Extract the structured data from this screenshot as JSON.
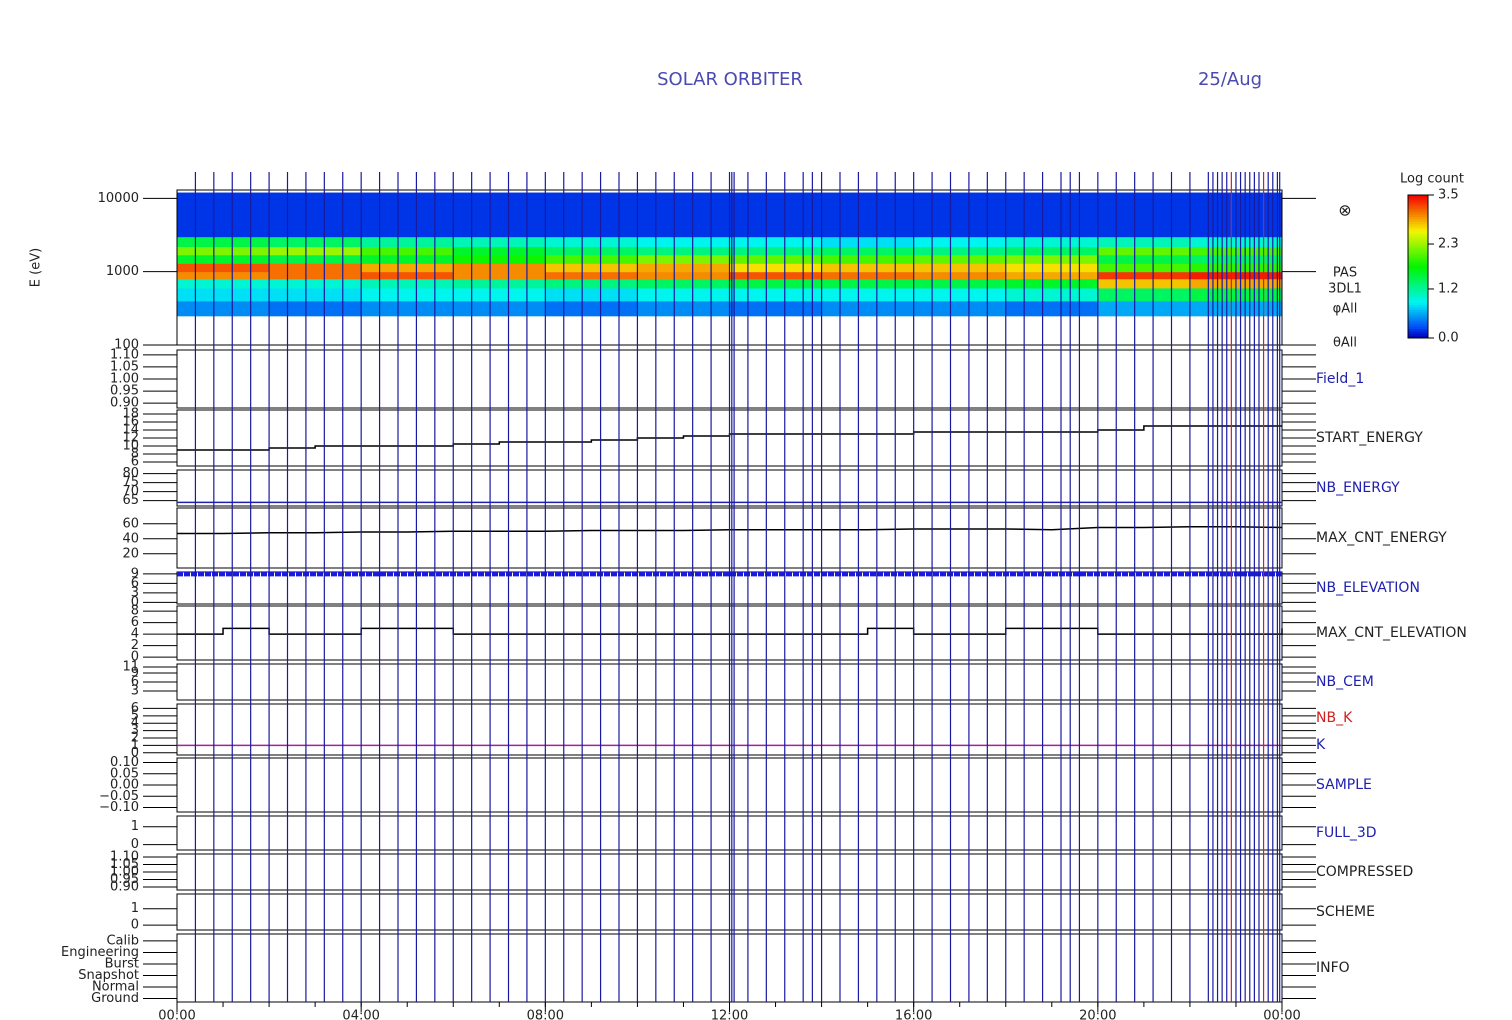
{
  "header": {
    "title": "SOLAR ORBITER",
    "date": "25/Aug"
  },
  "x_axis": {
    "xlim": [
      0,
      24
    ],
    "minor_step": 1,
    "xticks": [
      {
        "value": 0,
        "label": "00:00"
      },
      {
        "value": 4,
        "label": "04:00"
      },
      {
        "value": 8,
        "label": "08:00"
      },
      {
        "value": 12,
        "label": "12:00"
      },
      {
        "value": 16,
        "label": "16:00"
      },
      {
        "value": 20,
        "label": "20:00"
      },
      {
        "value": 24,
        "label": "00:00"
      }
    ]
  },
  "events": {
    "blue": [
      0.4,
      0.8,
      1.2,
      1.6,
      2.0,
      2.4,
      2.8,
      3.2,
      3.6,
      4.0,
      4.4,
      4.8,
      5.2,
      5.6,
      6.0,
      6.4,
      6.8,
      7.2,
      7.6,
      8.0,
      8.4,
      8.8,
      9.2,
      9.6,
      10.0,
      10.4,
      10.8,
      11.2,
      11.6,
      12.0,
      12.05,
      12.1,
      12.4,
      12.8,
      13.2,
      13.6,
      13.8,
      14.0,
      14.4,
      14.8,
      15.2,
      15.6,
      16.0,
      16.4,
      16.8,
      17.2,
      17.6,
      18.0,
      18.4,
      18.8,
      19.2,
      19.4,
      19.6,
      20.0,
      20.4,
      20.8,
      21.2,
      21.6,
      22.0,
      22.4,
      22.5,
      22.6,
      22.7,
      22.8,
      23.0,
      23.1,
      23.2,
      23.3,
      23.4,
      23.5,
      23.7,
      23.8,
      23.9,
      23.95
    ],
    "red": [
      22.9,
      23.6
    ]
  },
  "chart_data": [
    {
      "type": "heatmap",
      "ylabel": "E (eV)",
      "log_y": true,
      "ylim": [
        100,
        13000
      ],
      "yticks": [
        100,
        1000,
        10000
      ],
      "x_bins": [
        0,
        2,
        4,
        6,
        8,
        10,
        12,
        14,
        16,
        18,
        20,
        22,
        24
      ],
      "y_bins": [
        250,
        400,
        600,
        800,
        1000,
        1300,
        1700,
        2200,
        3000,
        12000
      ],
      "values": [
        [
          0.5,
          0.4,
          0.5,
          0.5,
          0.4,
          0.5,
          0.4,
          0.5,
          0.5,
          0.4,
          0.6,
          0.6
        ],
        [
          0.8,
          0.8,
          0.9,
          0.9,
          0.8,
          0.9,
          0.9,
          0.9,
          0.9,
          1.0,
          1.4,
          1.5
        ],
        [
          1.0,
          1.0,
          1.1,
          1.2,
          1.3,
          1.4,
          1.5,
          1.5,
          1.5,
          1.6,
          2.8,
          2.9
        ],
        [
          3.0,
          3.1,
          3.2,
          3.0,
          3.1,
          3.0,
          3.2,
          3.1,
          3.0,
          2.9,
          3.3,
          3.4
        ],
        [
          3.2,
          3.1,
          2.9,
          3.0,
          2.8,
          2.9,
          2.7,
          2.8,
          2.8,
          2.7,
          2.0,
          1.9
        ],
        [
          1.6,
          1.5,
          1.6,
          1.8,
          2.0,
          2.2,
          2.1,
          2.0,
          2.1,
          2.2,
          1.5,
          1.4
        ],
        [
          2.2,
          2.3,
          2.0,
          1.6,
          1.4,
          1.3,
          1.3,
          1.4,
          1.3,
          1.4,
          2.1,
          2.0
        ],
        [
          1.5,
          1.4,
          1.2,
          1.1,
          1.0,
          0.9,
          0.9,
          0.8,
          0.9,
          1.0,
          1.1,
          1.0
        ],
        [
          0.2,
          0.2,
          0.2,
          0.2,
          0.2,
          0.2,
          0.2,
          0.2,
          0.2,
          0.2,
          0.2,
          0.2
        ]
      ],
      "colorbar": {
        "title": "Log count",
        "clim": [
          0,
          3.5
        ],
        "ticks": [
          {
            "value": 0,
            "label": "0.0"
          },
          {
            "value": 1.2,
            "label": "1.2"
          },
          {
            "value": 2.3,
            "label": "2.3"
          },
          {
            "value": 3.5,
            "label": "3.5"
          }
        ]
      },
      "labels": [
        {
          "text": "PAS",
          "color": "#222222"
        },
        {
          "text": "3DL1",
          "color": "#222222"
        },
        {
          "text": "φAll",
          "color": "#222222"
        },
        {
          "text": "θAll",
          "color": "#222222"
        }
      ]
    },
    {
      "type": "blank",
      "ylim": [
        0.88,
        1.12
      ],
      "yticks": [
        {
          "value": 0.9,
          "label": "0.90"
        },
        {
          "value": 0.95,
          "label": "0.95"
        },
        {
          "value": 1,
          "label": "1.00"
        },
        {
          "value": 1.05,
          "label": "1.05"
        },
        {
          "value": 1.1,
          "label": "1.10"
        }
      ],
      "labels": [
        {
          "text": "Field_1",
          "color": "#2020b0"
        }
      ]
    },
    {
      "type": "line",
      "step": true,
      "color": "#000000",
      "ylim": [
        5,
        19
      ],
      "yticks": [
        6,
        8,
        10,
        12,
        14,
        16,
        18
      ],
      "x": [
        0,
        1,
        2,
        3,
        4,
        5,
        6,
        7,
        8,
        9,
        10,
        11,
        12,
        13,
        14,
        15,
        16,
        17,
        18,
        19,
        20,
        21,
        22,
        23,
        24
      ],
      "values": [
        9,
        9,
        9.5,
        10,
        10,
        10,
        10.5,
        11,
        11,
        11.5,
        12,
        12.5,
        13,
        13,
        13,
        13,
        13.5,
        13.5,
        13.5,
        13.5,
        14,
        15,
        15,
        15,
        15
      ],
      "labels": [
        {
          "text": "START_ENERGY",
          "color": "#222222"
        }
      ]
    },
    {
      "type": "line",
      "color": "#2020b0",
      "ylim": [
        62,
        82
      ],
      "yticks": [
        65,
        70,
        75,
        80
      ],
      "x": [
        0,
        24
      ],
      "values": [
        64,
        64
      ],
      "labels": [
        {
          "text": "NB_ENERGY",
          "color": "#2020b0"
        }
      ]
    },
    {
      "type": "line",
      "color": "#000000",
      "ylim": [
        1,
        81
      ],
      "yticks": [
        20,
        40,
        60
      ],
      "x": [
        0,
        1,
        2,
        3,
        4,
        5,
        6,
        7,
        8,
        9,
        10,
        11,
        12,
        13,
        14,
        15,
        16,
        17,
        18,
        19,
        20,
        21,
        22,
        23,
        24
      ],
      "values": [
        47,
        47,
        48,
        48,
        49,
        49,
        50,
        50,
        50,
        51,
        51,
        51,
        52,
        52,
        52,
        52,
        53,
        53,
        53,
        52,
        55,
        55,
        56,
        56,
        55
      ],
      "labels": [
        {
          "text": "MAX_CNT_ENERGY",
          "color": "#222222"
        }
      ]
    },
    {
      "type": "line",
      "dashed": true,
      "color": "#1a1ae0",
      "ylim": [
        -0.5,
        9.6
      ],
      "yticks": [
        0,
        3,
        6,
        9
      ],
      "x": [
        0,
        24
      ],
      "values": [
        9,
        9
      ],
      "labels": [
        {
          "text": "NB_ELEVATION",
          "color": "#2020b0"
        }
      ]
    },
    {
      "type": "line",
      "step": true,
      "color": "#000000",
      "ylim": [
        -0.5,
        8.9
      ],
      "yticks": [
        0,
        2,
        4,
        6,
        8
      ],
      "x": [
        0,
        1,
        2,
        3,
        4,
        5,
        6,
        7,
        8,
        9,
        10,
        11,
        12,
        13,
        14,
        15,
        16,
        17,
        18,
        19,
        20,
        21,
        22,
        23,
        24
      ],
      "values": [
        4,
        5,
        4,
        4,
        5,
        5,
        4,
        4,
        4,
        4,
        4,
        4,
        4,
        4,
        4,
        5,
        4,
        4,
        5,
        5,
        4,
        4,
        4,
        4,
        5
      ],
      "labels": [
        {
          "text": "MAX_CNT_ELEVATION",
          "color": "#222222"
        }
      ]
    },
    {
      "type": "blank",
      "ylim": [
        0,
        12
      ],
      "yticks": [
        3,
        6,
        9,
        11
      ],
      "labels": [
        {
          "text": "NB_CEM",
          "color": "#2020b0"
        }
      ]
    },
    {
      "type": "line",
      "color": "#a020a0",
      "ylim": [
        -0.3,
        6.6
      ],
      "yticks": [
        0,
        1,
        2,
        3,
        4,
        5,
        6
      ],
      "x": [
        0,
        24
      ],
      "values": [
        1,
        1
      ],
      "labels": [
        {
          "text": "NB_K",
          "color": "#d02020"
        },
        {
          "text": "K",
          "color": "#2020b0"
        }
      ]
    },
    {
      "type": "blank",
      "ylim": [
        -0.12,
        0.12
      ],
      "yticks": [
        {
          "value": -0.1,
          "label": "−0.10"
        },
        {
          "value": -0.05,
          "label": "−0.05"
        },
        {
          "value": 0,
          "label": "0.00"
        },
        {
          "value": 0.05,
          "label": "0.05"
        },
        {
          "value": 0.1,
          "label": "0.10"
        }
      ],
      "labels": [
        {
          "text": "SAMPLE",
          "color": "#2020b0"
        }
      ]
    },
    {
      "type": "blank",
      "ylim": [
        -0.3,
        1.6
      ],
      "yticks": [
        0,
        1
      ],
      "labels": [
        {
          "text": "FULL_3D",
          "color": "#2020b0"
        }
      ]
    },
    {
      "type": "blank",
      "ylim": [
        0.88,
        1.12
      ],
      "yticks": [
        {
          "value": 0.9,
          "label": "0.90"
        },
        {
          "value": 0.95,
          "label": "0.95"
        },
        {
          "value": 1,
          "label": "1.00"
        },
        {
          "value": 1.05,
          "label": "1.05"
        },
        {
          "value": 1.1,
          "label": "1.10"
        }
      ],
      "labels": [
        {
          "text": "COMPRESSED",
          "color": "#222222"
        }
      ]
    },
    {
      "type": "blank",
      "ylim": [
        -0.3,
        1.9
      ],
      "yticks": [
        0,
        1
      ],
      "labels": [
        {
          "text": "SCHEME",
          "color": "#222222"
        }
      ]
    },
    {
      "type": "blank",
      "ylim": [
        -0.3,
        5.6
      ],
      "yticks": [
        {
          "value": 0,
          "label": "Ground"
        },
        {
          "value": 1,
          "label": "Normal"
        },
        {
          "value": 2,
          "label": "Snapshot"
        },
        {
          "value": 3,
          "label": "Burst"
        },
        {
          "value": 4,
          "label": "Engineering"
        },
        {
          "value": 5,
          "label": "Calib"
        }
      ],
      "labels": [
        {
          "text": "INFO",
          "color": "#222222"
        }
      ]
    }
  ]
}
